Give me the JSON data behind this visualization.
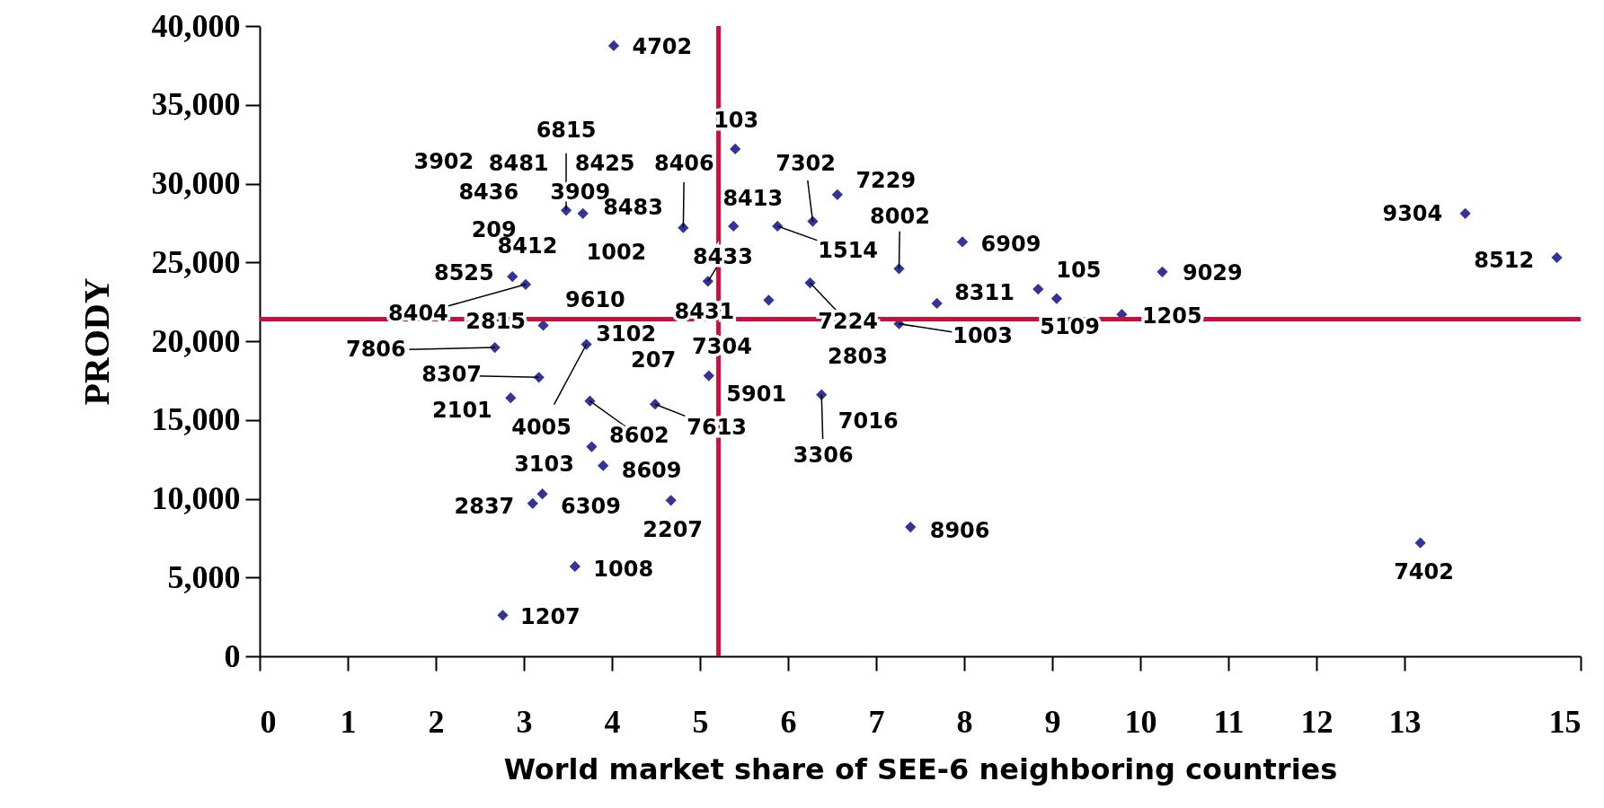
{
  "chart_data": {
    "type": "scatter",
    "xlabel": "World market share of SEE-6 neighboring countries",
    "ylabel": "PRODY",
    "xlim": [
      0,
      15
    ],
    "xticks": [
      0,
      1,
      2,
      3,
      4,
      5,
      6,
      7,
      8,
      9,
      10,
      11,
      12,
      13,
      15
    ],
    "ylim": [
      0,
      40000
    ],
    "yticks": [
      {
        "value": 0,
        "label": "0"
      },
      {
        "value": 5000,
        "label": "5,000"
      },
      {
        "value": 10000,
        "label": "10,000"
      },
      {
        "value": 15000,
        "label": "15,000"
      },
      {
        "value": 20000,
        "label": "20,000"
      },
      {
        "value": 25000,
        "label": "25,000"
      },
      {
        "value": 30000,
        "label": "30,000"
      },
      {
        "value": 35000,
        "label": "35,000"
      },
      {
        "value": 40000,
        "label": "40,000"
      }
    ],
    "grid": false,
    "marker": "diamond",
    "series": [
      {
        "color": "#333399",
        "x": [
          4.02,
          5.4,
          4.81,
          5.38,
          5.88,
          6.28,
          6.56,
          7.26,
          7.98,
          5.09,
          6.25,
          5.78,
          7.69,
          8.84,
          9.05,
          7.26,
          6.38,
          5.1,
          9.79,
          10.25,
          13.69,
          14.73,
          13.18,
          2.87,
          3.02,
          3.22,
          2.67,
          3.17,
          3.67,
          3.48,
          3.71,
          2.85,
          3.75,
          4.49,
          3.77,
          3.9,
          3.1,
          3.21,
          4.67,
          3.58,
          2.76,
          7.39
        ],
        "values": [
          38750,
          32200,
          27200,
          27300,
          27300,
          27600,
          29300,
          24600,
          26300,
          23800,
          23700,
          22600,
          22400,
          23300,
          22700,
          21100,
          16600,
          17800,
          21700,
          24400,
          28100,
          25300,
          7200,
          24100,
          23600,
          21000,
          19600,
          17700,
          28100,
          28300,
          19800,
          16400,
          16200,
          16000,
          13300,
          12100,
          9700,
          10300,
          9900,
          5700,
          2600,
          8200
        ]
      }
    ],
    "ref_lines": [
      {
        "axis": "x",
        "value": 5.21,
        "color": "#c8103c"
      },
      {
        "axis": "y",
        "value": 21400,
        "color": "#c8103c"
      }
    ],
    "annotations": [
      {
        "text": "4702",
        "x": 4.02,
        "y": 38750
      },
      {
        "text": "103",
        "x": 5.4,
        "y": 32200
      },
      {
        "text": "6815",
        "x": 3.48,
        "y": 28300
      },
      "3902",
      "8481",
      "8425",
      {
        "text": "8406",
        "x": 4.81,
        "y": 27200
      },
      {
        "text": "7302",
        "x": 6.28,
        "y": 27600
      },
      {
        "text": "7229",
        "x": 6.56,
        "y": 29300
      },
      "8436",
      {
        "text": "3909",
        "x": 3.67,
        "y": 28100
      },
      {
        "text": "8413",
        "x": 5.38,
        "y": 27300
      },
      "8483",
      {
        "text": "9304",
        "x": 13.69,
        "y": 28100
      },
      {
        "text": "8002",
        "x": 7.26,
        "y": 24600
      },
      "209",
      {
        "text": "6909",
        "x": 7.98,
        "y": 26300
      },
      "8412",
      {
        "text": "1514",
        "x": 5.88,
        "y": 27300
      },
      "1002",
      {
        "text": "8433",
        "x": 5.09,
        "y": 23800
      },
      {
        "text": "8512",
        "x": 14.73,
        "y": 25300
      },
      {
        "text": "105",
        "x": 8.84,
        "y": 23300
      },
      {
        "text": "8525",
        "x": 2.87,
        "y": 24100
      },
      {
        "text": "9029",
        "x": 10.25,
        "y": 24400
      },
      {
        "text": "8311",
        "x": 7.69,
        "y": 22400
      },
      "9610",
      "8431",
      {
        "text": "8404",
        "x": 3.02,
        "y": 23600
      },
      {
        "text": "1205",
        "x": 9.79,
        "y": 21700
      },
      {
        "text": "2815",
        "x": 3.22,
        "y": 21000
      },
      {
        "text": "7224",
        "x": 6.25,
        "y": 23700
      },
      {
        "text": "5109",
        "x": 9.05,
        "y": 22700
      },
      "3102",
      {
        "text": "1003",
        "x": 7.26,
        "y": 21100
      },
      "7304",
      {
        "text": "7806",
        "x": 2.67,
        "y": 19600
      },
      "2803",
      "207",
      {
        "text": "8307",
        "x": 3.17,
        "y": 17700
      },
      {
        "text": "5901",
        "x": 5.1,
        "y": 17800
      },
      {
        "text": "2101",
        "x": 2.85,
        "y": 16400
      },
      "7016",
      {
        "text": "4005",
        "x": 3.71,
        "y": 19800
      },
      {
        "text": "7613",
        "x": 4.49,
        "y": 16000
      },
      {
        "text": "8602",
        "x": 3.75,
        "y": 16200
      },
      {
        "text": "3306",
        "x": 6.38,
        "y": 16600
      },
      {
        "text": "3103",
        "x": 3.77,
        "y": 13300
      },
      {
        "text": "8609",
        "x": 3.9,
        "y": 12100
      },
      {
        "text": "2837",
        "x": 3.1,
        "y": 9700
      },
      {
        "text": "6309",
        "x": 3.21,
        "y": 10300
      },
      {
        "text": "2207",
        "x": 4.67,
        "y": 9900
      },
      {
        "text": "8906",
        "x": 7.39,
        "y": 8200
      },
      {
        "text": "1008",
        "x": 3.58,
        "y": 5700
      },
      {
        "text": "7402",
        "x": 13.18,
        "y": 7200
      },
      {
        "text": "1207",
        "x": 2.76,
        "y": 2600
      }
    ]
  }
}
